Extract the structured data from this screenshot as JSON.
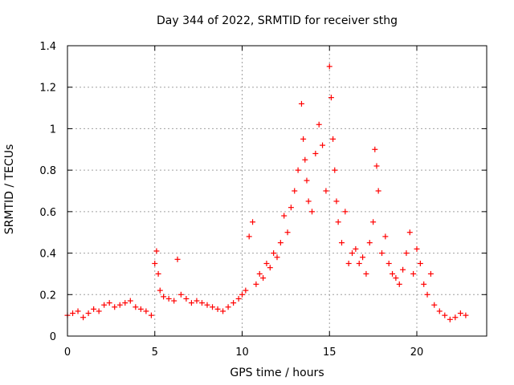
{
  "chart_data": {
    "type": "scatter",
    "title": "Day 344 of 2022, SRMTID for receiver sthg",
    "xlabel": "GPS time / hours",
    "ylabel": "SRMTID / TECUs",
    "xlim": [
      0,
      24
    ],
    "ylim": [
      0,
      1.4
    ],
    "xticks": [
      "0",
      "5",
      "10",
      "15",
      "20"
    ],
    "yticks": [
      "0",
      "0.2",
      "0.4",
      "0.6",
      "0.8",
      "1",
      "1.2",
      "1.4"
    ],
    "grid": true,
    "marker": "+",
    "color": "#ff0000",
    "series": [
      {
        "name": "sthg",
        "x": [
          0.0,
          0.3,
          0.6,
          0.9,
          1.2,
          1.5,
          1.8,
          2.1,
          2.4,
          2.7,
          3.0,
          3.3,
          3.6,
          3.9,
          4.2,
          4.5,
          4.8,
          5.0,
          5.1,
          5.2,
          5.3,
          5.5,
          5.8,
          6.1,
          6.3,
          6.5,
          6.8,
          7.1,
          7.4,
          7.7,
          8.0,
          8.3,
          8.6,
          8.9,
          9.2,
          9.5,
          9.8,
          10.0,
          10.2,
          10.4,
          10.6,
          10.8,
          11.0,
          11.2,
          11.4,
          11.6,
          11.8,
          12.0,
          12.2,
          12.4,
          12.6,
          12.8,
          13.0,
          13.2,
          13.4,
          13.5,
          13.6,
          13.7,
          13.8,
          14.0,
          14.2,
          14.4,
          14.6,
          14.8,
          15.0,
          15.1,
          15.2,
          15.3,
          15.4,
          15.5,
          15.7,
          15.9,
          16.1,
          16.3,
          16.5,
          16.7,
          16.9,
          17.1,
          17.3,
          17.5,
          17.6,
          17.7,
          17.8,
          18.0,
          18.2,
          18.4,
          18.6,
          18.8,
          19.0,
          19.2,
          19.4,
          19.6,
          19.8,
          20.0,
          20.2,
          20.4,
          20.6,
          20.8,
          21.0,
          21.3,
          21.6,
          21.9,
          22.2,
          22.5,
          22.8
        ],
        "y": [
          0.1,
          0.11,
          0.12,
          0.09,
          0.11,
          0.13,
          0.12,
          0.15,
          0.16,
          0.14,
          0.15,
          0.16,
          0.17,
          0.14,
          0.13,
          0.12,
          0.1,
          0.35,
          0.41,
          0.3,
          0.22,
          0.19,
          0.18,
          0.17,
          0.37,
          0.2,
          0.18,
          0.16,
          0.17,
          0.16,
          0.15,
          0.14,
          0.13,
          0.12,
          0.14,
          0.16,
          0.18,
          0.2,
          0.22,
          0.48,
          0.55,
          0.25,
          0.3,
          0.28,
          0.35,
          0.33,
          0.4,
          0.38,
          0.45,
          0.58,
          0.5,
          0.62,
          0.7,
          0.8,
          1.12,
          0.95,
          0.85,
          0.75,
          0.65,
          0.6,
          0.88,
          1.02,
          0.92,
          0.7,
          1.3,
          1.15,
          0.95,
          0.8,
          0.65,
          0.55,
          0.45,
          0.6,
          0.35,
          0.4,
          0.42,
          0.35,
          0.38,
          0.3,
          0.45,
          0.55,
          0.9,
          0.82,
          0.7,
          0.4,
          0.48,
          0.35,
          0.3,
          0.28,
          0.25,
          0.32,
          0.4,
          0.5,
          0.3,
          0.42,
          0.35,
          0.25,
          0.2,
          0.3,
          0.15,
          0.12,
          0.1,
          0.08,
          0.09,
          0.11,
          0.1
        ]
      }
    ]
  }
}
